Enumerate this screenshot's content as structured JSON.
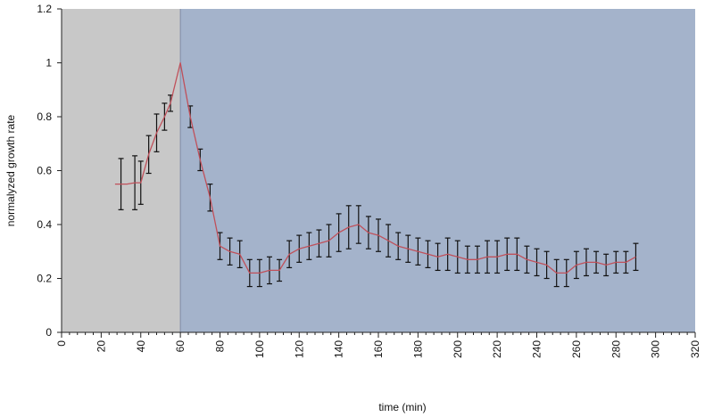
{
  "chart_data": {
    "type": "line",
    "xlabel": "time (min)",
    "ylabel": "normalyzed  growth rate",
    "xlim": [
      0,
      320
    ],
    "ylim": [
      0,
      1.2
    ],
    "x_ticks": [
      0,
      20,
      40,
      60,
      80,
      100,
      120,
      140,
      160,
      180,
      200,
      220,
      240,
      260,
      280,
      300,
      320
    ],
    "y_ticks": [
      0,
      0.2,
      0.4,
      0.6,
      0.8,
      1,
      1.2
    ],
    "x_tick_labels": [
      "0",
      "20",
      "40",
      "60",
      "80",
      "100",
      "120",
      "140",
      "160",
      "180",
      "200",
      "220",
      "240",
      "260",
      "280",
      "300",
      "320"
    ],
    "y_tick_labels": [
      "0",
      "0.2",
      "0.4",
      "0.6",
      "0.8",
      "1",
      "1.2"
    ],
    "grid": false,
    "legend": "none",
    "shaded_regions": [
      {
        "x_start": 0,
        "x_end": 60,
        "color": "#c8c8c8"
      },
      {
        "x_start": 60,
        "x_end": 320,
        "color": "#a4b3cb"
      }
    ],
    "line_color": "#c0505a",
    "errorbar_color": "#111111",
    "series": [
      {
        "x": [
          27,
          30,
          33,
          37,
          40,
          44,
          48,
          52,
          55,
          60,
          65,
          70,
          75,
          80,
          85,
          90,
          95,
          100,
          105,
          110,
          115,
          120,
          125,
          130,
          135,
          140,
          145,
          150,
          155,
          160,
          165,
          170,
          175,
          180,
          185,
          190,
          195,
          200,
          205,
          210,
          215,
          220,
          225,
          230,
          235,
          240,
          245,
          250,
          255,
          260,
          265,
          270,
          275,
          280,
          285,
          290
        ],
        "y": [
          0.55,
          0.55,
          0.55,
          0.555,
          0.555,
          0.66,
          0.74,
          0.8,
          0.85,
          1.0,
          0.8,
          0.64,
          0.5,
          0.32,
          0.3,
          0.29,
          0.22,
          0.22,
          0.23,
          0.23,
          0.29,
          0.31,
          0.32,
          0.33,
          0.34,
          0.37,
          0.39,
          0.4,
          0.37,
          0.36,
          0.34,
          0.32,
          0.31,
          0.3,
          0.29,
          0.28,
          0.29,
          0.28,
          0.27,
          0.27,
          0.28,
          0.28,
          0.29,
          0.29,
          0.27,
          0.26,
          0.25,
          0.22,
          0.22,
          0.25,
          0.26,
          0.26,
          0.25,
          0.26,
          0.26,
          0.28
        ],
        "error": [
          0.0,
          0.095,
          0.0,
          0.1,
          0.08,
          0.07,
          0.07,
          0.05,
          0.03,
          0.0,
          0.04,
          0.04,
          0.05,
          0.05,
          0.05,
          0.05,
          0.05,
          0.05,
          0.05,
          0.04,
          0.05,
          0.05,
          0.05,
          0.05,
          0.06,
          0.07,
          0.08,
          0.07,
          0.06,
          0.06,
          0.06,
          0.05,
          0.05,
          0.05,
          0.05,
          0.05,
          0.06,
          0.06,
          0.05,
          0.05,
          0.06,
          0.06,
          0.06,
          0.06,
          0.05,
          0.05,
          0.05,
          0.05,
          0.05,
          0.05,
          0.05,
          0.04,
          0.04,
          0.04,
          0.04,
          0.05
        ]
      }
    ]
  }
}
